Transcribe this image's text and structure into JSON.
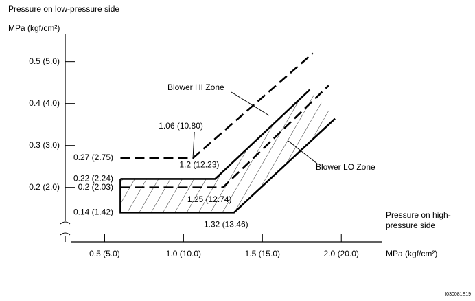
{
  "chart_data": {
    "type": "line",
    "y_title": "Pressure on low-pressure side",
    "y_unit": "MPa (kgf/cm²)",
    "x_title": [
      "Pressure on high-",
      "pressure side"
    ],
    "x_unit": "MPa (kgf/cm²)",
    "code": "I030081E19",
    "xlim": [
      0.25,
      2.26
    ],
    "ylim": [
      0.07,
      0.565
    ],
    "xticks": [
      {
        "value": 0.5,
        "label": "0.5 (5.0)"
      },
      {
        "value": 1.0,
        "label": "1.0 (10.0)"
      },
      {
        "value": 1.5,
        "label": "1.5 (15.0)"
      },
      {
        "value": 2.0,
        "label": "2.0 (20.0)"
      }
    ],
    "yticks": [
      {
        "value": 0.5,
        "label": "0.5 (5.0)"
      },
      {
        "value": 0.4,
        "label": "0.4 (4.0)"
      },
      {
        "value": 0.3,
        "label": "0.3 (3.0)"
      },
      {
        "value": 0.2,
        "label": "0.2 (2.0)"
      }
    ],
    "levels": [
      {
        "value": 0.27,
        "label": "0.27 (2.75)"
      },
      {
        "value": 0.22,
        "label": "0.22 (2.24)"
      },
      {
        "value": 0.2,
        "label": "0.2 (2.03)"
      },
      {
        "value": 0.14,
        "label": "0.14 (1.42)"
      }
    ],
    "corners": [
      {
        "x": 1.06,
        "y": 0.27,
        "label": "1.06 (10.80)"
      },
      {
        "x": 1.2,
        "y": 0.22,
        "label": "1.2 (12.23)"
      },
      {
        "x": 1.25,
        "y": 0.2,
        "label": "1.25 (12.74)"
      },
      {
        "x": 1.32,
        "y": 0.14,
        "label": "1.32 (13.46)"
      }
    ],
    "zones": [
      "Blower HI Zone",
      "Blower LO Zone"
    ],
    "series": [
      {
        "color": "#000000",
        "dash": true,
        "x": [
          0.6,
          1.06,
          1.82
        ],
        "values": [
          0.27,
          0.27,
          0.52
        ]
      },
      {
        "color": "#000000",
        "dash": false,
        "x": [
          0.6,
          1.2,
          1.8
        ],
        "values": [
          0.22,
          0.22,
          0.433
        ]
      },
      {
        "color": "#000000",
        "dash": true,
        "x": [
          0.6,
          1.25,
          1.92
        ],
        "values": [
          0.2,
          0.2,
          0.443
        ]
      },
      {
        "color": "#000000",
        "dash": false,
        "x": [
          0.6,
          0.6,
          1.32,
          1.96
        ],
        "values": [
          0.22,
          0.14,
          0.14,
          0.364
        ]
      }
    ]
  }
}
